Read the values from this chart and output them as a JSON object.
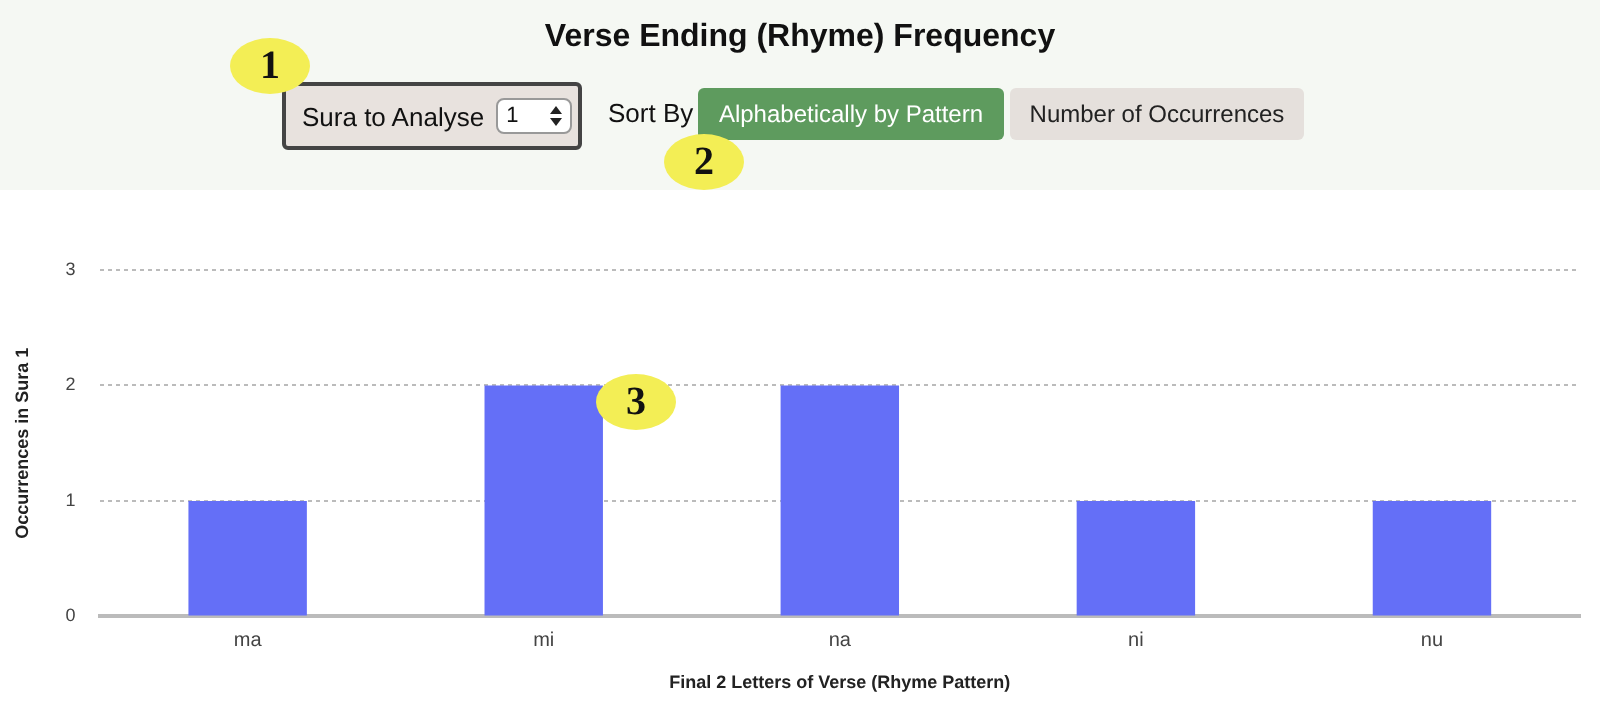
{
  "chart_data": {
    "type": "bar",
    "title": "Verse Ending (Rhyme) Frequency",
    "xlabel": "Final 2 Letters of Verse (Rhyme Pattern)",
    "ylabel": "Occurrences in Sura 1",
    "categories": [
      "ma",
      "mi",
      "na",
      "ni",
      "nu"
    ],
    "values": [
      1,
      2,
      2,
      1,
      1
    ],
    "color": "#646ff7",
    "ylim": [
      0,
      3
    ],
    "yticks": [
      0,
      1,
      2,
      3
    ],
    "grid": "y",
    "annotations": [
      "Sura to Analyse",
      "1",
      "Sort By",
      "Alphabetically by Pattern",
      "Number of Occurrences",
      "1",
      "2",
      "3"
    ]
  }
}
